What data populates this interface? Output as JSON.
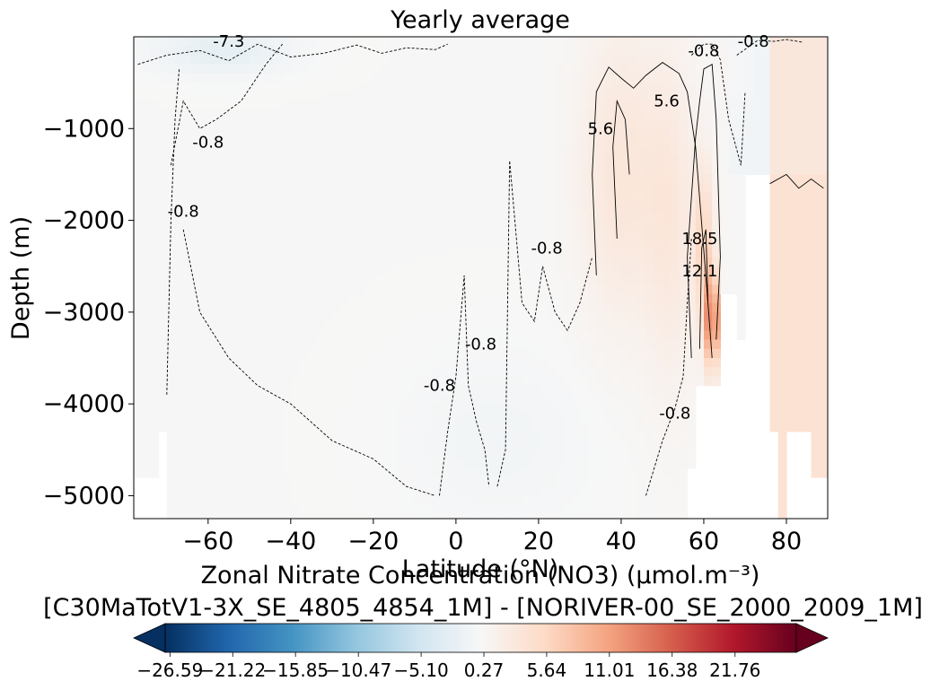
{
  "chart_data": {
    "type": "heatmap",
    "title": "Yearly average",
    "xlabel": "Latitude (°N)",
    "ylabel": "Depth (m)",
    "xlim": [
      -78,
      90
    ],
    "ylim": [
      -5250,
      0
    ],
    "xticks": [
      -60,
      -40,
      -20,
      0,
      20,
      40,
      60,
      80
    ],
    "yticks": [
      -1000,
      -2000,
      -3000,
      -4000,
      -5000
    ],
    "xtick_labels": [
      "−60",
      "−40",
      "−20",
      "0",
      "20",
      "40",
      "60",
      "80"
    ],
    "ytick_labels": [
      "−1000",
      "−2000",
      "−3000",
      "−4000",
      "−5000"
    ],
    "grid": false,
    "colormap": "RdBu_r",
    "colorbar": {
      "title_line1": "Zonal Nitrate Concentration (NO3) (µmol.m⁻³)",
      "title_line2": "[C30MaTotV1-3X_SE_4805_4854_1M] - [NORIVER-00_SE_2000_2009_1M]",
      "range": [
        -27.0,
        27.0
      ],
      "extend": "both",
      "ticks": [
        -26.59,
        -21.22,
        -15.85,
        -10.47,
        -5.1,
        0.27,
        5.64,
        11.01,
        16.38,
        21.76
      ],
      "tick_labels": [
        "−26.59",
        "−21.22",
        "−15.85",
        "−10.47",
        "−5.10",
        "0.27",
        "5.64",
        "11.01",
        "16.38",
        "21.76"
      ],
      "colors": [
        "#053061",
        "#2166ac",
        "#4393c3",
        "#92c5de",
        "#d1e5f0",
        "#f7f7f7",
        "#fddbc7",
        "#f4a582",
        "#d6604d",
        "#b2182b",
        "#67001f"
      ]
    },
    "contour_labels": [
      {
        "text": "-7.3",
        "lat": -55,
        "depth": -50
      },
      {
        "text": "-0.8",
        "lat": -60,
        "depth": -1150
      },
      {
        "text": "-0.8",
        "lat": -66,
        "depth": -1900
      },
      {
        "text": "-0.8",
        "lat": 22,
        "depth": -2300
      },
      {
        "text": "-0.8",
        "lat": 6,
        "depth": -3350
      },
      {
        "text": "-0.8",
        "lat": -4,
        "depth": -3800
      },
      {
        "text": "-0.8",
        "lat": 53,
        "depth": -4100
      },
      {
        "text": "-0.8",
        "lat": 60,
        "depth": -150
      },
      {
        "text": "-0.8",
        "lat": 72,
        "depth": -50
      },
      {
        "text": "5.6",
        "lat": 35,
        "depth": -1000
      },
      {
        "text": "5.6",
        "lat": 51,
        "depth": -700
      },
      {
        "text": "18.5",
        "lat": 59,
        "depth": -2200
      },
      {
        "text": "12.1",
        "lat": 59,
        "depth": -2550
      }
    ]
  }
}
